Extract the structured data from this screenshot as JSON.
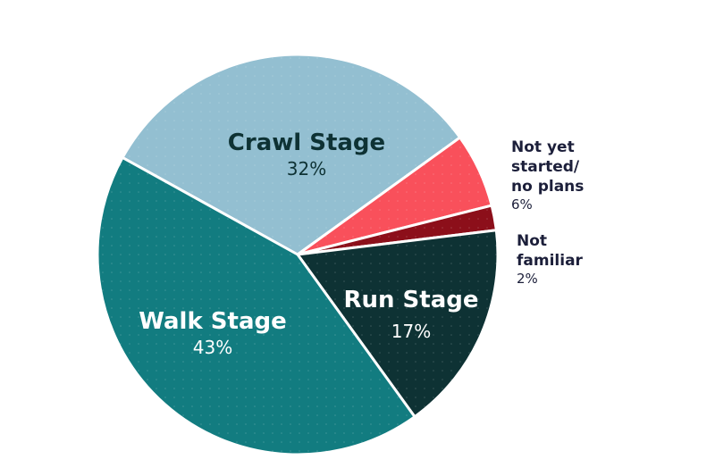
{
  "chart_data": {
    "type": "pie",
    "slices": [
      {
        "label": "Crawl Stage",
        "value_label": "32%",
        "value": 32,
        "color": "#93bfd1"
      },
      {
        "label": "Not yet started/ no plans",
        "label_lines": [
          "Not yet",
          "started/",
          "no plans"
        ],
        "value_label": "6%",
        "value": 6,
        "color": "#f9505b"
      },
      {
        "label": "Not familiar",
        "label_lines": [
          "Not",
          "familiar"
        ],
        "value_label": "2%",
        "value": 2,
        "color": "#8c0f1a"
      },
      {
        "label": "Run Stage",
        "value_label": "17%",
        "value": 17,
        "color": "#0e3234"
      },
      {
        "label": "Walk Stage",
        "value_label": "43%",
        "value": 43,
        "color": "#127c80"
      }
    ]
  }
}
